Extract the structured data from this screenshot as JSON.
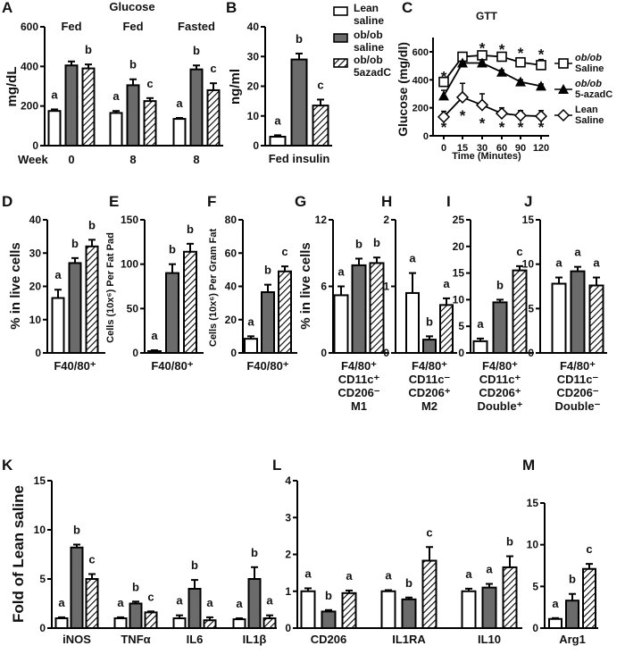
{
  "colors": {
    "lean_saline": "#ffffff",
    "obob_saline": "#6b6b6b",
    "obob_5azadc": "hatched",
    "stroke": "#000000"
  },
  "legend": [
    {
      "lines": [
        "Lean",
        "saline"
      ],
      "fill": "white"
    },
    {
      "lines": [
        "ob/ob",
        "saline"
      ],
      "fill": "gray"
    },
    {
      "lines": [
        "ob/ob",
        "5azadC"
      ],
      "fill": "hatched"
    }
  ],
  "chart_data": [
    {
      "panel": "A",
      "type": "bar",
      "title": "Glucose",
      "ylabel": "mg/dL",
      "ylim": [
        0,
        600
      ],
      "yticks": [
        0,
        200,
        400,
        600
      ],
      "week_label": "Week",
      "groups": [
        {
          "condition": "Fed",
          "week": "0",
          "values": [
            175,
            405,
            390
          ],
          "errors": [
            8,
            20,
            20
          ],
          "letters": [
            "a",
            "",
            "b"
          ]
        },
        {
          "condition": "Fed",
          "week": "8",
          "values": [
            165,
            305,
            225
          ],
          "errors": [
            10,
            30,
            15
          ],
          "letters": [
            "a",
            "b",
            "c"
          ]
        },
        {
          "condition": "Fasted",
          "week": "8",
          "values": [
            135,
            385,
            280
          ],
          "errors": [
            5,
            20,
            35
          ],
          "letters": [
            "a",
            "b",
            "c"
          ]
        }
      ]
    },
    {
      "panel": "B",
      "type": "bar",
      "ylabel": "ng/ml",
      "ylim": [
        0,
        40
      ],
      "yticks": [
        0,
        10,
        20,
        30,
        40
      ],
      "xlabel": [
        "Fed insulin"
      ],
      "groups": [
        {
          "values": [
            3,
            29,
            13.5
          ],
          "errors": [
            0.5,
            2,
            2
          ],
          "letters": [
            "a",
            "b",
            "c"
          ]
        }
      ]
    },
    {
      "panel": "C",
      "type": "line",
      "title": "GTT",
      "ylabel": "Glucose (mg/dl)",
      "xlabel": "Time (Minutes)",
      "ylim": [
        0,
        650
      ],
      "yticks": [
        0,
        200,
        400,
        600
      ],
      "x": [
        0,
        15,
        30,
        60,
        90,
        120
      ],
      "series": [
        {
          "name": [
            "ob/ob",
            "Saline"
          ],
          "marker": "open-square",
          "values": [
            385,
            565,
            575,
            565,
            525,
            505
          ],
          "errors": [
            0,
            15,
            15,
            15,
            30,
            40
          ]
        },
        {
          "name": [
            "ob/ob",
            "5-azadC"
          ],
          "marker": "filled-triangle",
          "values": [
            285,
            520,
            520,
            455,
            385,
            355
          ],
          "errors": [
            40,
            10,
            10,
            15,
            15,
            15
          ]
        },
        {
          "name": [
            "Lean",
            "Saline"
          ],
          "marker": "open-diamond",
          "values": [
            135,
            275,
            220,
            160,
            145,
            140
          ],
          "errors": [
            40,
            100,
            80,
            40,
            35,
            40
          ]
        }
      ],
      "stars_top": [
        "*",
        "",
        "*",
        "*",
        "*",
        "*"
      ],
      "stars_bottom": [
        "*",
        "*",
        "*",
        "*",
        "*",
        "*"
      ]
    },
    {
      "panel": "D",
      "type": "bar",
      "ylabel": "% in live cells",
      "ylim": [
        0,
        40
      ],
      "yticks": [
        0,
        10,
        20,
        30,
        40
      ],
      "xlabel": [
        "F40/80⁺"
      ],
      "groups": [
        {
          "values": [
            16.5,
            27,
            32
          ],
          "errors": [
            2.5,
            1.5,
            2
          ],
          "letters": [
            "a",
            "b",
            "b"
          ]
        }
      ]
    },
    {
      "panel": "E",
      "type": "bar",
      "ylabel": "Cells (10x⁶) Per Fat Pad",
      "ylim": [
        0,
        150
      ],
      "yticks": [
        0,
        50,
        100,
        150
      ],
      "xlabel": [
        "F40/80⁺"
      ],
      "groups": [
        {
          "values": [
            2,
            90,
            114
          ],
          "errors": [
            1,
            10,
            9
          ],
          "letters": [
            "a",
            "b",
            "b"
          ]
        }
      ]
    },
    {
      "panel": "F",
      "type": "bar",
      "ylabel": "Cells (10x⁶) Per Gram Fat",
      "ylim": [
        0,
        80
      ],
      "yticks": [
        0,
        20,
        40,
        60,
        80
      ],
      "xlabel": [
        "F40/80⁺"
      ],
      "groups": [
        {
          "values": [
            8.5,
            36.5,
            49
          ],
          "errors": [
            1.5,
            4.5,
            3
          ],
          "letters": [
            "a",
            "b",
            "c"
          ]
        }
      ]
    },
    {
      "panel": "G",
      "type": "bar",
      "ylabel": "% in live cells",
      "ylim": [
        0,
        12
      ],
      "yticks": [
        0,
        6,
        12
      ],
      "xlabel": [
        "F4/80⁺",
        "CD11c⁺",
        "CD206⁻",
        "M1"
      ],
      "groups": [
        {
          "values": [
            5.2,
            7.9,
            8.1
          ],
          "errors": [
            0.8,
            0.6,
            0.5
          ],
          "letters": [
            "a",
            "b",
            "b"
          ]
        }
      ]
    },
    {
      "panel": "H",
      "type": "bar",
      "ylim": [
        0,
        2
      ],
      "yticks": [
        0,
        1,
        2
      ],
      "xlabel": [
        "F4/80⁺",
        "CD11c⁻",
        "CD206⁺",
        "M2"
      ],
      "groups": [
        {
          "values": [
            0.9,
            0.2,
            0.72
          ],
          "errors": [
            0.3,
            0.05,
            0.1
          ],
          "letters": [
            "a",
            "b",
            "a"
          ]
        }
      ]
    },
    {
      "panel": "I",
      "type": "bar",
      "ylim": [
        0,
        25
      ],
      "yticks": [
        0,
        5,
        10,
        15,
        20,
        25
      ],
      "xlabel": [
        "F4/80⁺",
        "CD11c⁺",
        "CD206⁺",
        "Double⁺"
      ],
      "groups": [
        {
          "values": [
            2.2,
            9.5,
            15.5
          ],
          "errors": [
            0.5,
            0.5,
            0.8
          ],
          "letters": [
            "a",
            "b",
            "c"
          ]
        }
      ]
    },
    {
      "panel": "J",
      "type": "bar",
      "ylim": [
        0,
        15
      ],
      "yticks": [
        0,
        5,
        10,
        15
      ],
      "xlabel": [
        "F4/80⁺",
        "CD11c⁻",
        "CD206⁻",
        "Double⁻"
      ],
      "groups": [
        {
          "values": [
            7.8,
            9.2,
            7.6
          ],
          "errors": [
            0.7,
            0.5,
            0.9
          ],
          "letters": [
            "a",
            "a",
            "a"
          ]
        }
      ]
    },
    {
      "panel": "K",
      "type": "bar",
      "ylabel": "Fold of Lean saline",
      "ylim": [
        0,
        15
      ],
      "yticks": [
        0,
        5,
        10,
        15
      ],
      "groups": [
        {
          "label": "iNOS",
          "values": [
            1,
            8.2,
            5
          ],
          "errors": [
            0.1,
            0.3,
            0.5
          ],
          "letters": [
            "a",
            "b",
            "c"
          ]
        },
        {
          "label": "TNFα",
          "values": [
            1,
            2.5,
            1.6
          ],
          "errors": [
            0.1,
            0.2,
            0.1
          ],
          "letters": [
            "a",
            "b",
            "c"
          ]
        },
        {
          "label": "IL6",
          "values": [
            1,
            4,
            0.8
          ],
          "errors": [
            0.3,
            0.9,
            0.3
          ],
          "letters": [
            "a",
            "b",
            "a"
          ]
        },
        {
          "label": "IL1β",
          "values": [
            0.9,
            5,
            1
          ],
          "errors": [
            0.1,
            1.2,
            0.3
          ],
          "letters": [
            "a",
            "b",
            "a"
          ]
        }
      ]
    },
    {
      "panel": "L",
      "type": "bar",
      "ylim": [
        0,
        4
      ],
      "yticks": [
        0,
        1,
        2,
        3,
        4
      ],
      "groups": [
        {
          "label": "CD206",
          "values": [
            1,
            0.45,
            0.95
          ],
          "errors": [
            0.08,
            0.04,
            0.07
          ],
          "letters": [
            "a",
            "b",
            "a"
          ]
        },
        {
          "label": "IL1RA",
          "values": [
            1,
            0.78,
            1.83
          ],
          "errors": [
            0.03,
            0.05,
            0.37
          ],
          "letters": [
            "a",
            "b",
            "c"
          ]
        },
        {
          "label": "IL10",
          "values": [
            1,
            1.1,
            1.65
          ],
          "errors": [
            0.07,
            0.1,
            0.3
          ],
          "letters": [
            "a",
            "a",
            "b"
          ]
        }
      ]
    },
    {
      "panel": "M",
      "type": "bar",
      "ylim": [
        0,
        15
      ],
      "yticks": [
        0,
        5,
        10,
        15
      ],
      "groups": [
        {
          "label": "Arg1",
          "values": [
            1.1,
            3.3,
            7.1
          ],
          "errors": [
            0.1,
            0.8,
            0.6
          ],
          "letters": [
            "a",
            "b",
            "c"
          ]
        }
      ]
    }
  ]
}
